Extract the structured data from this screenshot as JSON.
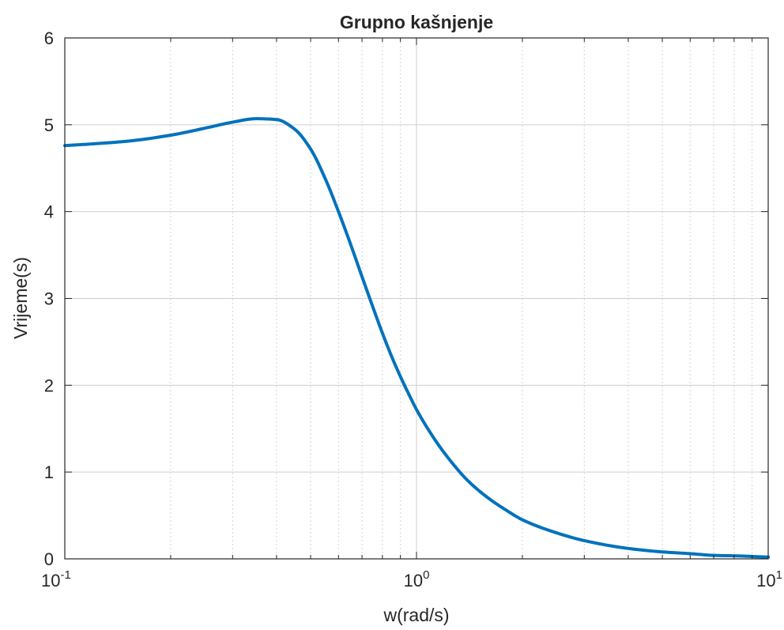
{
  "chart_data": {
    "type": "line",
    "title": "Grupno kašnjenje",
    "xlabel": "w(rad/s)",
    "ylabel": "Vrijeme(s)",
    "x_scale": "log",
    "xlim": [
      0.1,
      10
    ],
    "ylim": [
      0,
      6
    ],
    "grid": true,
    "x_ticks": [
      {
        "base": "10",
        "exp": "-1"
      },
      {
        "base": "10",
        "exp": "0"
      },
      {
        "base": "10",
        "exp": "1"
      }
    ],
    "y_ticks": [
      "0",
      "1",
      "2",
      "3",
      "4",
      "5",
      "6"
    ],
    "series": [
      {
        "color": "#0072BD",
        "x": [
          0.1,
          0.12,
          0.15,
          0.2,
          0.25,
          0.3,
          0.35,
          0.4,
          0.45,
          0.5,
          0.55,
          0.6,
          0.65,
          0.7,
          0.75,
          0.8,
          0.85,
          0.9,
          0.95,
          1.0,
          1.1,
          1.2,
          1.4,
          1.6,
          1.8,
          2.0,
          2.5,
          3.0,
          4.0,
          5.0,
          6.0,
          7.0,
          8.0,
          10.0
        ],
        "y": [
          4.76,
          4.78,
          4.81,
          4.88,
          4.96,
          5.03,
          5.07,
          5.06,
          4.95,
          4.72,
          4.38,
          4.0,
          3.62,
          3.25,
          2.91,
          2.6,
          2.33,
          2.1,
          1.9,
          1.72,
          1.44,
          1.22,
          0.9,
          0.7,
          0.56,
          0.45,
          0.3,
          0.21,
          0.12,
          0.08,
          0.06,
          0.04,
          0.035,
          0.02
        ]
      }
    ]
  }
}
